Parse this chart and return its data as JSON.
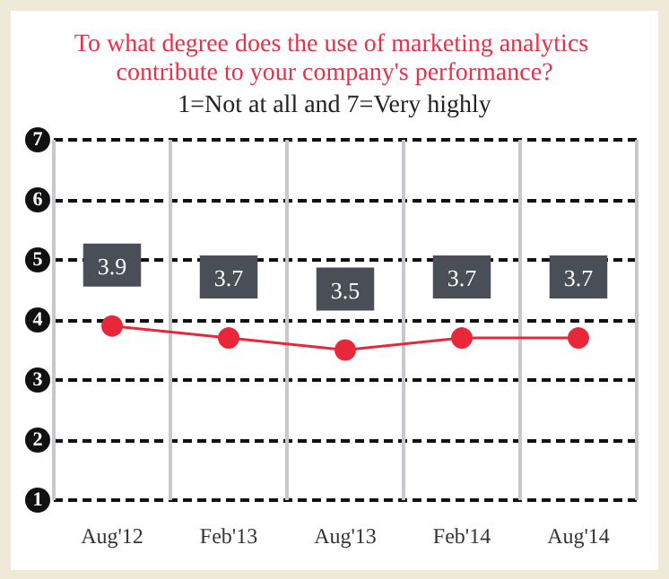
{
  "chart_data": {
    "type": "line",
    "title": "To what degree does the use of marketing analytics contribute to your company's performance?",
    "subtitle": "1=Not at all and 7=Very highly",
    "categories": [
      "Aug'12",
      "Feb'13",
      "Aug'13",
      "Feb'14",
      "Aug'14"
    ],
    "values": [
      3.9,
      3.7,
      3.5,
      3.7,
      3.7
    ],
    "color": "#e8283a",
    "ylim": [
      1,
      7
    ],
    "yticks": [
      1,
      2,
      3,
      4,
      5,
      6,
      7
    ],
    "grid": true,
    "marker": "circle",
    "data_labels": true
  }
}
